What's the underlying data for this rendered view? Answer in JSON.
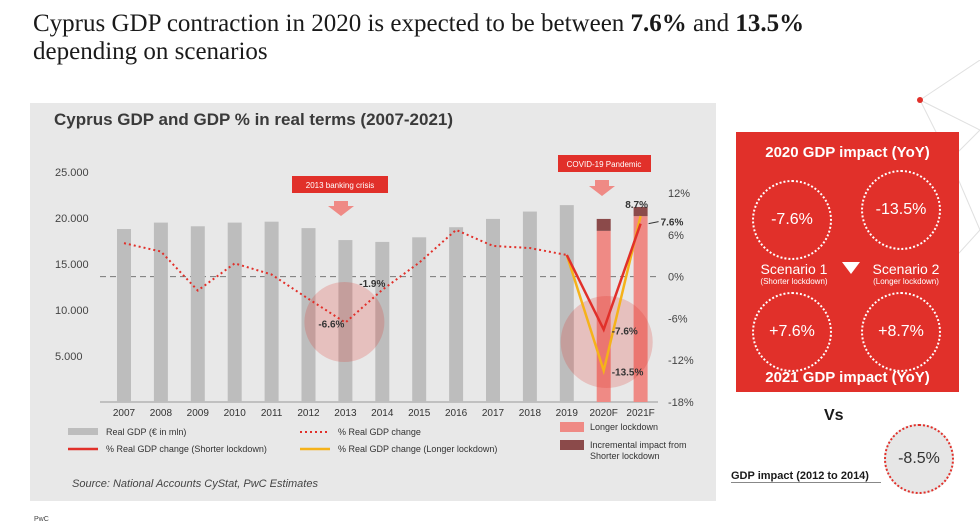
{
  "page": {
    "title_part1": "Cyprus GDP contraction in 2020 is expected to be between ",
    "title_bold1": "7.6%",
    "title_part2": " and ",
    "title_bold2": "13.5%",
    "title_line2": "depending on scenarios",
    "footer": "PwC"
  },
  "colors": {
    "accent": "#e1302a",
    "bar_gray": "#bdbdbd",
    "bar_light_red": "#ef8a85",
    "bar_dark_red": "#8b4a4a",
    "line_red": "#e1302a",
    "line_orange": "#f5b21a",
    "panel_bg": "#e8e8e8"
  },
  "chart_data": {
    "type": "bar",
    "title": "Cyprus GDP and GDP % in real terms (2007-2021)",
    "categories": [
      "2007",
      "2008",
      "2009",
      "2010",
      "2011",
      "2012",
      "2013",
      "2014",
      "2015",
      "2016",
      "2017",
      "2018",
      "2019",
      "2020F",
      "2021F"
    ],
    "left_axis": {
      "ticks": [
        "25.000",
        "20.000",
        "15.000",
        "10.000",
        "5.000"
      ],
      "ylim": [
        0,
        25000
      ]
    },
    "right_axis": {
      "ticks": [
        "12%",
        "6%",
        "0%",
        "-6%",
        "-12%",
        "-18%"
      ],
      "ylim": [
        -18,
        12
      ]
    },
    "series": [
      {
        "name": "Real GDP (€ in mln)",
        "type": "bar",
        "values": [
          18800,
          19500,
          19100,
          19500,
          19600,
          18900,
          17600,
          17400,
          17900,
          19000,
          19900,
          20700,
          21400,
          null,
          null
        ]
      },
      {
        "name": "Longer lockdown",
        "type": "bar",
        "values": [
          null,
          null,
          null,
          null,
          null,
          null,
          null,
          null,
          null,
          null,
          null,
          null,
          null,
          18600,
          20200
        ]
      },
      {
        "name": "Incremental impact from Shorter lockdown",
        "type": "bar-stack",
        "values": [
          null,
          null,
          null,
          null,
          null,
          null,
          null,
          null,
          null,
          null,
          null,
          null,
          null,
          1300,
          1000
        ]
      },
      {
        "name": "% Real GDP change",
        "type": "line",
        "values": [
          4.8,
          3.6,
          -2.0,
          1.9,
          0.3,
          -3.2,
          -6.6,
          -1.9,
          2.0,
          6.7,
          4.4,
          4.1,
          3.1,
          null,
          null
        ]
      },
      {
        "name": "% Real GDP change (Shorter lockdown)",
        "type": "line",
        "values": [
          null,
          null,
          null,
          null,
          null,
          null,
          null,
          null,
          null,
          null,
          null,
          null,
          3.1,
          -7.6,
          7.6
        ]
      },
      {
        "name": "% Real GDP change (Longer lockdown)",
        "type": "line",
        "values": [
          null,
          null,
          null,
          null,
          null,
          null,
          null,
          null,
          null,
          null,
          null,
          null,
          3.1,
          -13.5,
          8.7
        ]
      }
    ],
    "annotations": [
      {
        "text": "2013 banking crisis",
        "year": "2013"
      },
      {
        "text": "COVID-19 Pandemic",
        "year": "2020F"
      }
    ],
    "data_labels": [
      {
        "text": "-6.6%",
        "year": "2013",
        "value": -6.6,
        "series": "% Real GDP change"
      },
      {
        "text": "-1.9%",
        "year": "2014",
        "value": -1.9,
        "series": "% Real GDP change"
      },
      {
        "text": "-7.6%",
        "year": "2020F",
        "value": -7.6,
        "series": "% Real GDP change (Shorter lockdown)"
      },
      {
        "text": "-13.5%",
        "year": "2020F",
        "value": -13.5,
        "series": "% Real GDP change (Longer lockdown)"
      },
      {
        "text": "8.7%",
        "year": "2021F",
        "value": 8.7,
        "series": "% Real GDP change (Longer lockdown)"
      },
      {
        "text": "7.6%",
        "year": "2021F",
        "value": 7.6,
        "series": "% Real GDP change (Shorter lockdown)"
      }
    ],
    "legend": [
      {
        "label": "Real GDP (€ in mln)",
        "kind": "bar-gray"
      },
      {
        "label": "% Real GDP change",
        "kind": "dotted-red"
      },
      {
        "label": "Longer lockdown",
        "kind": "bar-light-red"
      },
      {
        "label": "% Real GDP change (Shorter lockdown)",
        "kind": "line-red"
      },
      {
        "label": "% Real GDP change (Longer lockdown)",
        "kind": "line-orange"
      },
      {
        "label": "Incremental impact from Shorter lockdown",
        "kind": "bar-dark-red"
      }
    ],
    "legend_placement": "bottom",
    "source": "Source: National Accounts CyStat, PwC Estimates"
  },
  "impact_box": {
    "title_top": "2020 GDP impact (YoY)",
    "title_bottom": "2021 GDP impact (YoY)",
    "scenario1": {
      "name": "Scenario 1",
      "sub": "(Shorter lockdown)",
      "v2020": "-7.6%",
      "v2021": "+7.6%"
    },
    "scenario2": {
      "name": "Scenario 2",
      "sub": "(Longer lockdown)",
      "v2020": "-13.5%",
      "v2021": "+8.7%"
    }
  },
  "comparison": {
    "vs": "Vs",
    "label": "GDP impact (2012 to 2014)",
    "value": "-8.5%"
  }
}
